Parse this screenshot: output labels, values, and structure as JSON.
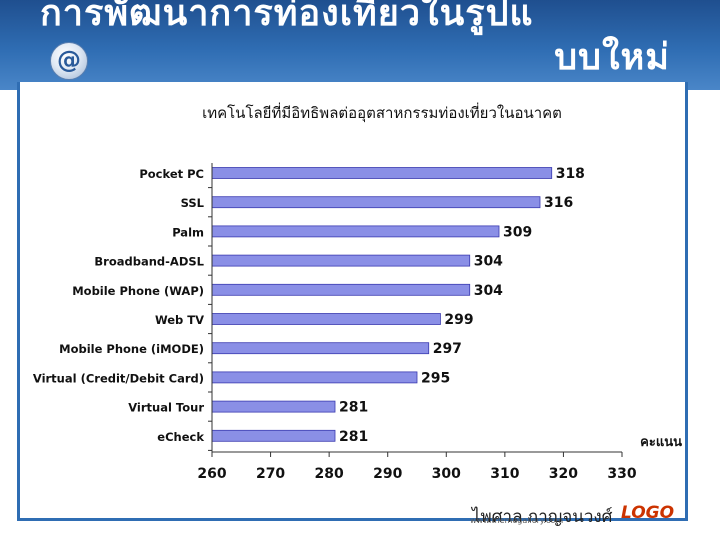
{
  "slide": {
    "title_line1": "การพัฒนาการท่องเที่ยวในรูปแ",
    "title_line2": "บบใหม่",
    "at_symbol": "@",
    "author": "ไพศาล กาญจนวงศ์",
    "logo": "LOGO",
    "footnote": "www.themegallery.com"
  },
  "colors": {
    "header": "#2f6db3",
    "bar_fill": "#8a8fe6",
    "bar_stroke": "#3a3ab0"
  },
  "icons": [
    "at-sign-icon"
  ],
  "chart_data": {
    "type": "bar",
    "orientation": "horizontal",
    "title": "เทคโนโลยีที่มีอิทธิพลต่ออุตสาหกรรมท่องเที่ยวในอนาคต",
    "xlabel": "คะแนน",
    "ylabel": "",
    "categories": [
      "Pocket PC",
      "SSL",
      "Palm",
      "Broadband-ADSL",
      "Mobile Phone (WAP)",
      "Web TV",
      "Mobile Phone (iMODE)",
      "Virtual (Credit/Debit Card)",
      "Virtual Tour",
      "eCheck"
    ],
    "values": [
      318,
      316,
      309,
      304,
      304,
      299,
      297,
      295,
      281,
      281
    ],
    "data_labels": [
      "318",
      "316",
      "309",
      "304",
      "304",
      "299",
      "297",
      "295",
      "281",
      "281"
    ],
    "xlim": [
      260,
      330
    ],
    "x_ticks": [
      "260",
      "270",
      "280",
      "290",
      "300",
      "310",
      "320",
      "330"
    ],
    "grid": false,
    "legend": "none"
  }
}
